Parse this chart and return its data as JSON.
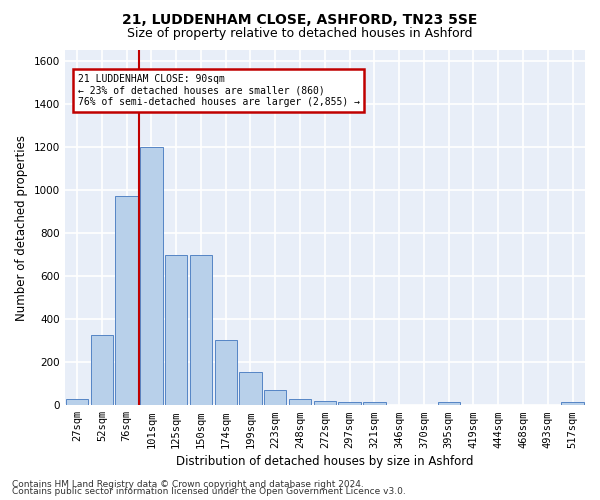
{
  "title_line1": "21, LUDDENHAM CLOSE, ASHFORD, TN23 5SE",
  "title_line2": "Size of property relative to detached houses in Ashford",
  "xlabel": "Distribution of detached houses by size in Ashford",
  "ylabel": "Number of detached properties",
  "footer_line1": "Contains HM Land Registry data © Crown copyright and database right 2024.",
  "footer_line2": "Contains public sector information licensed under the Open Government Licence v3.0.",
  "categories": [
    "27sqm",
    "52sqm",
    "76sqm",
    "101sqm",
    "125sqm",
    "150sqm",
    "174sqm",
    "199sqm",
    "223sqm",
    "248sqm",
    "272sqm",
    "297sqm",
    "321sqm",
    "346sqm",
    "370sqm",
    "395sqm",
    "419sqm",
    "444sqm",
    "468sqm",
    "493sqm",
    "517sqm"
  ],
  "values": [
    30,
    325,
    970,
    1200,
    700,
    700,
    305,
    155,
    70,
    30,
    20,
    15,
    15,
    0,
    0,
    15,
    0,
    0,
    0,
    0,
    15
  ],
  "bar_color": "#b8d0ea",
  "bar_edge_color": "#5585c5",
  "vline_color": "#c00000",
  "vline_x_index": 2.5,
  "ylim": [
    0,
    1650
  ],
  "yticks": [
    0,
    200,
    400,
    600,
    800,
    1000,
    1200,
    1400,
    1600
  ],
  "annotation_text": "21 LUDDENHAM CLOSE: 90sqm\n← 23% of detached houses are smaller (860)\n76% of semi-detached houses are larger (2,855) →",
  "annotation_box_color": "#c00000",
  "bg_color": "#e8eef8",
  "grid_color": "#ffffff",
  "title_fontsize": 10,
  "subtitle_fontsize": 9,
  "axis_label_fontsize": 8.5,
  "tick_fontsize": 7.5,
  "footer_fontsize": 6.5,
  "fig_width": 6.0,
  "fig_height": 5.0
}
